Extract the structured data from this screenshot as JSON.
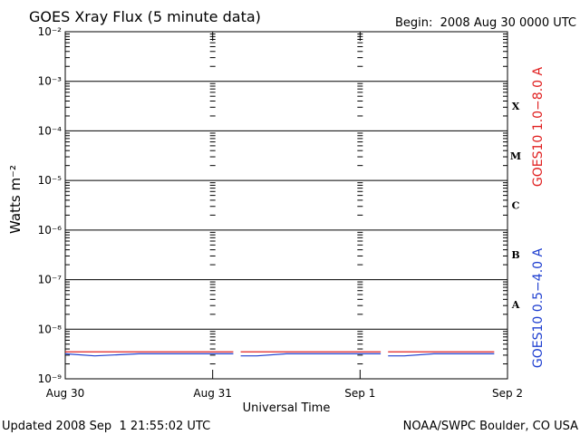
{
  "chart_data": {
    "type": "line",
    "title": "GOES Xray Flux (5 minute data)",
    "begin_label": "Begin:  2008 Aug 30 0000 UTC",
    "x_label": "Universal Time",
    "y_label": "Watts m⁻²",
    "footer_left": "Updated 2008 Sep  1 21:55:02 UTC",
    "footer_right": "NOAA/SWPC Boulder, CO USA",
    "log_scale_y": true,
    "grid": true,
    "xlim": [
      0,
      3
    ],
    "xticks": [
      {
        "value": 0,
        "label": "Aug 30"
      },
      {
        "value": 1,
        "label": "Aug 31"
      },
      {
        "value": 2,
        "label": "Sep 1"
      },
      {
        "value": 3,
        "label": "Sep 2"
      }
    ],
    "ylim": [
      1e-09,
      0.01
    ],
    "yticks": [
      {
        "value": 1e-09,
        "label": "10⁻⁹"
      },
      {
        "value": 1e-08,
        "label": "10⁻⁸"
      },
      {
        "value": 1e-07,
        "label": "10⁻⁷"
      },
      {
        "value": 1e-06,
        "label": "10⁻⁶"
      },
      {
        "value": 1e-05,
        "label": "10⁻⁵"
      },
      {
        "value": 0.0001,
        "label": "10⁻⁴"
      },
      {
        "value": 0.001,
        "label": "10⁻³"
      },
      {
        "value": 0.01,
        "label": "10⁻²"
      }
    ],
    "flare_classes": [
      {
        "value": 0.0001,
        "label": "X"
      },
      {
        "value": 1e-05,
        "label": "M"
      },
      {
        "value": 1e-06,
        "label": "C"
      },
      {
        "value": 1e-07,
        "label": "B"
      },
      {
        "value": 1e-08,
        "label": "A"
      }
    ],
    "x": [
      0,
      0.2,
      0.5,
      1.14,
      1.165,
      1.19,
      1.3,
      1.5,
      2.14,
      2.165,
      2.19,
      2.3,
      2.5,
      2.91
    ],
    "series": [
      {
        "name": "GOES10 1.0−8.0 A",
        "color": "#e02020",
        "values": [
          3.5e-09,
          3.5e-09,
          3.5e-09,
          3.5e-09,
          null,
          3.5e-09,
          3.5e-09,
          3.5e-09,
          3.5e-09,
          null,
          3.5e-09,
          3.5e-09,
          3.5e-09,
          3.5e-09
        ]
      },
      {
        "name": "GOES10 0.5−4.0 A",
        "color": "#2040d0",
        "values": [
          3.2e-09,
          2.9e-09,
          3.2e-09,
          3.2e-09,
          null,
          2.9e-09,
          2.9e-09,
          3.2e-09,
          3.2e-09,
          null,
          2.9e-09,
          2.9e-09,
          3.2e-09,
          3.2e-09
        ]
      }
    ]
  }
}
